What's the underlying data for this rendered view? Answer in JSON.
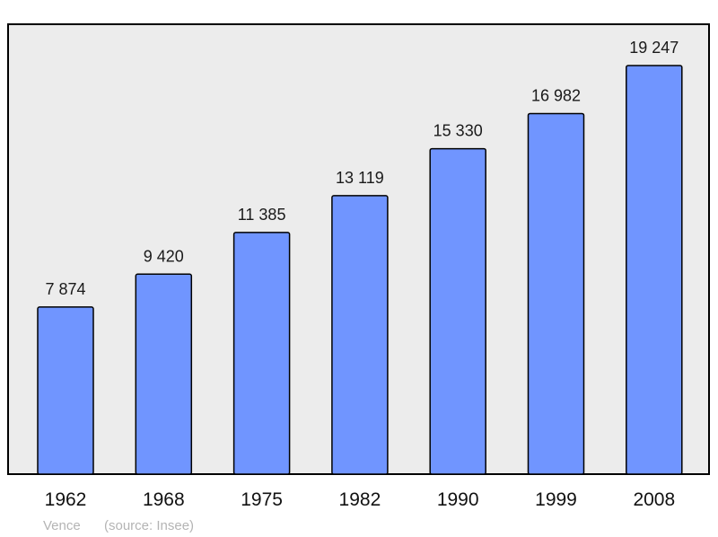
{
  "colors": {
    "plot_background": "#ececec",
    "bar_fill": "#7095ff",
    "bar_stroke": "#000000",
    "frame_stroke": "#000000",
    "caption_text": "#b4b4b4"
  },
  "caption": {
    "place": "Vence",
    "source": "(source: Insee)"
  },
  "chart_data": {
    "type": "bar",
    "categories": [
      "1962",
      "1968",
      "1975",
      "1982",
      "1990",
      "1999",
      "2008"
    ],
    "values": [
      7874,
      9420,
      11385,
      13119,
      15330,
      16982,
      19247
    ],
    "value_labels": [
      "7 874",
      "9 420",
      "11 385",
      "13 119",
      "15 330",
      "16 982",
      "19 247"
    ],
    "title": "",
    "xlabel": "",
    "ylabel": "",
    "ylim": [
      0,
      21000
    ],
    "grid": false,
    "legend": "none"
  }
}
